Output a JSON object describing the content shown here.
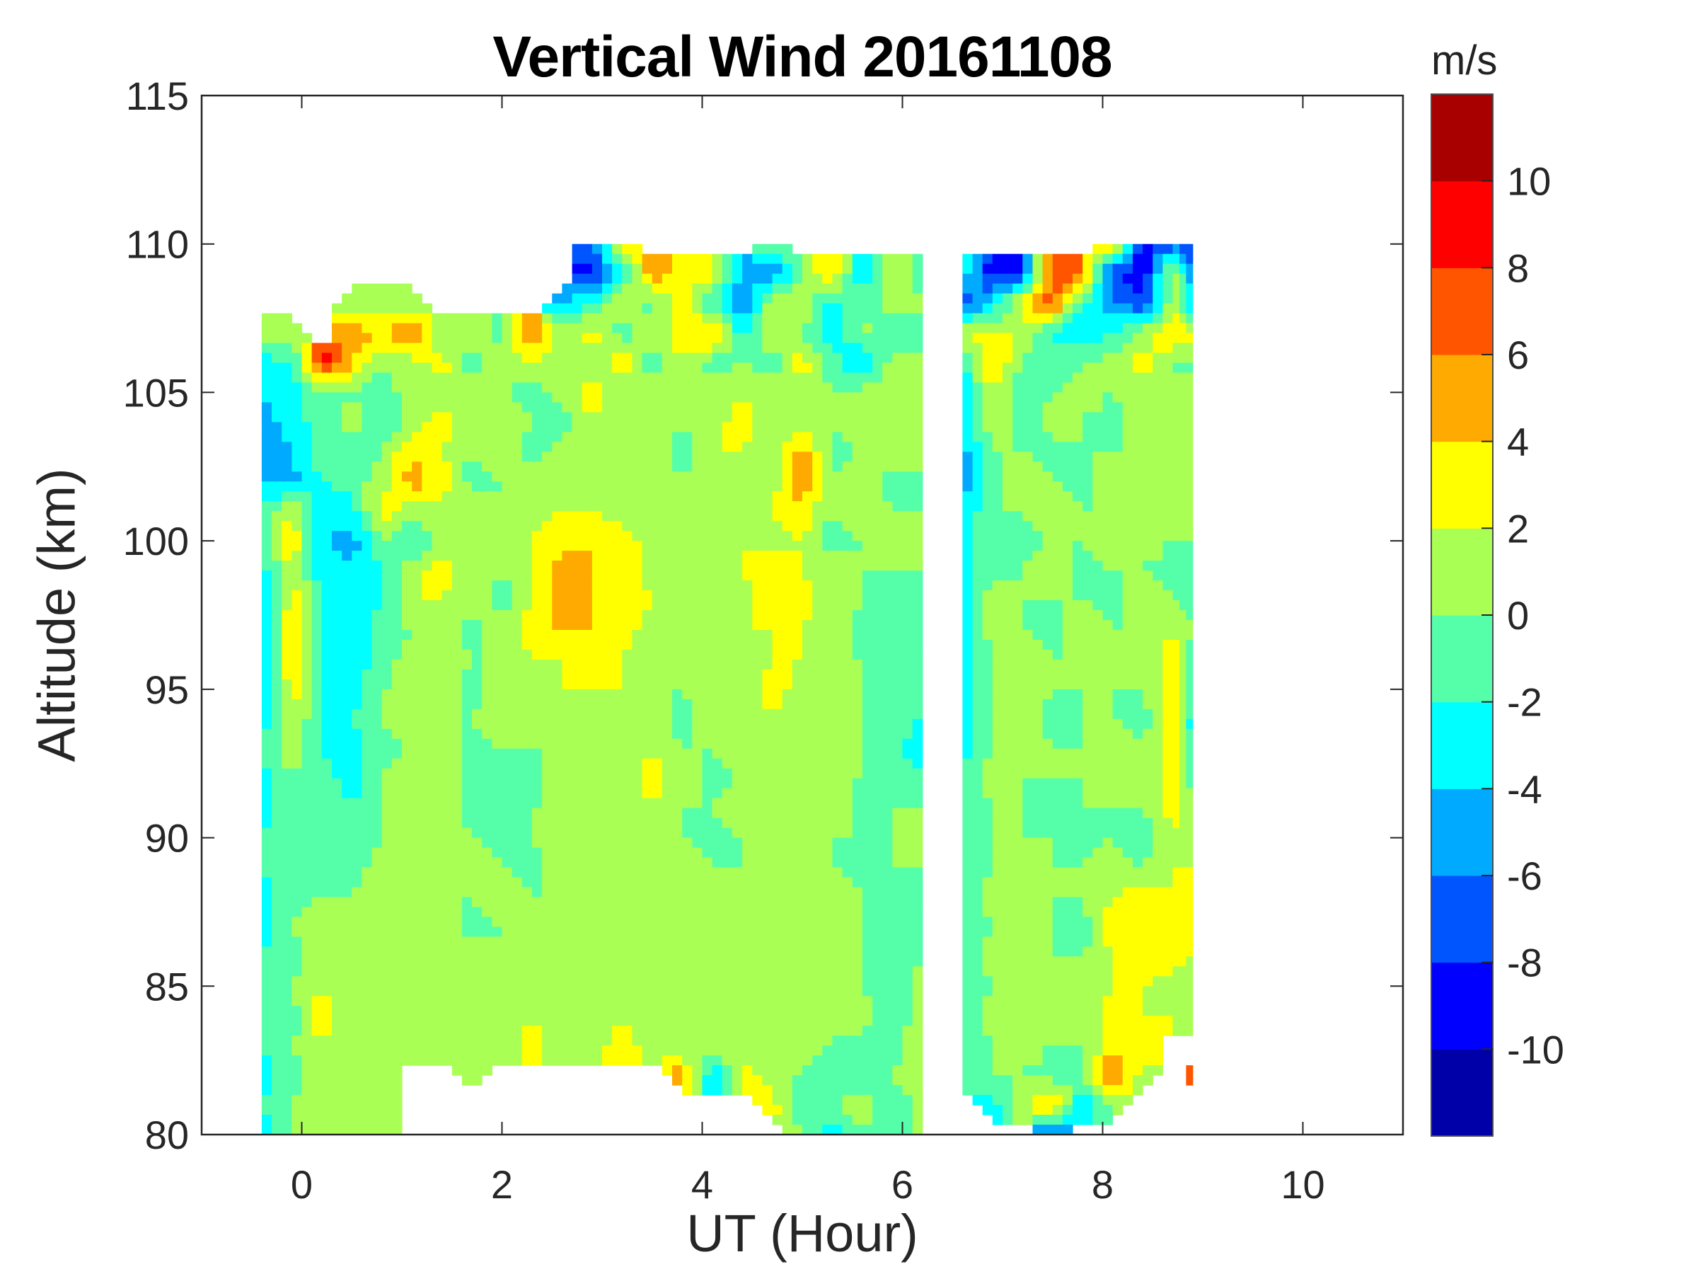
{
  "chart_data": {
    "type": "heatmap",
    "subtype": "filled-contour",
    "title": "Vertical Wind 20161108",
    "xlabel": "UT (Hour)",
    "ylabel": "Altitude (km)",
    "xlim": [
      -1,
      11
    ],
    "ylim": [
      80,
      115
    ],
    "xticks": [
      "0",
      "2",
      "4",
      "6",
      "8",
      "10"
    ],
    "xtick_values": [
      0,
      2,
      4,
      6,
      8,
      10
    ],
    "yticks": [
      "80",
      "85",
      "90",
      "95",
      "100",
      "105",
      "110",
      "115"
    ],
    "ytick_values": [
      80,
      85,
      90,
      95,
      100,
      105,
      110,
      115
    ],
    "grid": false,
    "colorbar": {
      "label": "m/s",
      "location": "right",
      "ticks": [
        "10",
        "8",
        "6",
        "4",
        "2",
        "0",
        "-2",
        "-4",
        "-6",
        "-8",
        "-10"
      ],
      "tick_values": [
        10,
        8,
        6,
        4,
        2,
        0,
        -2,
        -4,
        -6,
        -8,
        -10
      ],
      "range": [
        -12,
        12
      ],
      "levels": [
        -12,
        -10,
        -8,
        -6,
        -4,
        -2,
        0,
        2,
        4,
        6,
        8,
        10,
        12
      ],
      "colors": [
        "#0000a8",
        "#0000ff",
        "#0055ff",
        "#00aaff",
        "#00ffff",
        "#55ffaa",
        "#aaff55",
        "#ffff00",
        "#ffaa00",
        "#ff5500",
        "#ff0000",
        "#a80000"
      ]
    },
    "x_hours": [
      -0.4,
      -0.1,
      0.2,
      0.5,
      0.8,
      1.1,
      1.4,
      1.7,
      2.0,
      2.3,
      2.6,
      2.9,
      3.2,
      3.5,
      3.8,
      4.1,
      4.4,
      4.7,
      5.0,
      5.3,
      5.6,
      5.9,
      6.2,
      6.6,
      6.9,
      7.2,
      7.5,
      7.8,
      8.1,
      8.4,
      8.7,
      8.9
    ],
    "altitudes_km": [
      110,
      109,
      108,
      107,
      106,
      105,
      104,
      103,
      102,
      101,
      100,
      99,
      98,
      97,
      96,
      95,
      94,
      93,
      92,
      91,
      90,
      89,
      88,
      87,
      86,
      85,
      84,
      83,
      82,
      81,
      80
    ],
    "vertical_wind_ms": [
      [
        null,
        null,
        null,
        null,
        null,
        null,
        null,
        null,
        null,
        null,
        null,
        -7,
        3,
        null,
        null,
        null,
        null,
        1,
        null,
        null,
        null,
        null,
        null,
        null,
        null,
        null,
        null,
        null,
        4,
        -9,
        -7,
        -8
      ],
      [
        null,
        null,
        null,
        null,
        null,
        null,
        null,
        null,
        null,
        null,
        null,
        -9,
        -3,
        6,
        2,
        3,
        -5,
        -6,
        0,
        4,
        -4,
        2,
        -1,
        -3,
        -9,
        -8,
        8,
        6,
        -8,
        -10,
        2,
        -6
      ],
      [
        null,
        null,
        null,
        1,
        1,
        1,
        null,
        null,
        null,
        null,
        -5,
        -2,
        2,
        -1,
        4,
        -2,
        -6,
        1,
        2,
        -3,
        -1,
        1,
        0,
        -7,
        -4,
        3,
        7,
        -2,
        -6,
        -8,
        1,
        -4
      ],
      [
        1,
        1,
        null,
        5,
        4,
        7,
        0,
        1,
        -1,
        7,
        1,
        3,
        -1,
        1,
        3,
        5,
        -3,
        2,
        0,
        -4,
        1,
        -2,
        0,
        2,
        3,
        1,
        -2,
        -4,
        -2,
        1,
        5,
        2
      ],
      [
        -3,
        -2,
        9,
        4,
        1,
        1,
        3,
        -1,
        1,
        2,
        1,
        0,
        4,
        -1,
        2,
        -1,
        0,
        -1,
        3,
        -1,
        -5,
        1,
        0,
        -3,
        4,
        0,
        -2,
        0,
        1,
        3,
        -1,
        0
      ],
      [
        -4,
        -3,
        -1,
        0,
        -2,
        2,
        1,
        1,
        0,
        -1,
        1,
        3,
        0,
        1,
        1,
        1,
        2,
        1,
        1,
        0,
        1,
        0,
        0,
        -3,
        2,
        -2,
        0,
        1,
        0,
        1,
        2,
        0
      ],
      [
        -5,
        -3,
        -1,
        1,
        -2,
        1,
        3,
        1,
        2,
        0,
        -1,
        2,
        1,
        2,
        0,
        1,
        3,
        0,
        1,
        0,
        1,
        1,
        0,
        -4,
        1,
        -1,
        1,
        0,
        -1,
        1,
        1,
        0
      ],
      [
        -5,
        -4,
        -1,
        -2,
        0,
        4,
        2,
        0,
        1,
        -1,
        1,
        1,
        2,
        1,
        -1,
        2,
        2,
        1,
        5,
        -1,
        0,
        1,
        0,
        -5,
        0,
        0,
        -1,
        0,
        0,
        0,
        1,
        0
      ],
      [
        -4,
        -5,
        -2,
        -1,
        1,
        5,
        3,
        -1,
        0,
        1,
        2,
        0,
        1,
        1,
        0,
        1,
        1,
        1,
        6,
        0,
        1,
        -1,
        0,
        -5,
        -1,
        1,
        0,
        -1,
        1,
        0,
        0,
        0
      ],
      [
        -2,
        2,
        -3,
        -3,
        3,
        1,
        1,
        2,
        0,
        1,
        2,
        2,
        1,
        0,
        1,
        2,
        1,
        2,
        3,
        0,
        1,
        0,
        0,
        -4,
        0,
        0,
        1,
        0,
        0,
        0,
        1,
        1
      ],
      [
        -1,
        4,
        -4,
        -5,
        0,
        -2,
        1,
        0,
        1,
        2,
        3,
        4,
        3,
        1,
        0,
        1,
        2,
        1,
        2,
        -1,
        0,
        0,
        0,
        -3,
        0,
        -1,
        0,
        0,
        1,
        1,
        0,
        0
      ],
      [
        -3,
        2,
        -3,
        -4,
        -2,
        1,
        3,
        1,
        0,
        2,
        5,
        4,
        3,
        1,
        1,
        0,
        2,
        3,
        2,
        1,
        0,
        0,
        0,
        -3,
        -1,
        0,
        1,
        -1,
        0,
        0,
        -1,
        0
      ],
      [
        -4,
        3,
        -2,
        -3,
        -2,
        2,
        2,
        1,
        -1,
        2,
        6,
        4,
        4,
        2,
        1,
        1,
        1,
        3,
        3,
        1,
        0,
        -1,
        0,
        -3,
        1,
        0,
        0,
        0,
        -1,
        1,
        0,
        -1
      ],
      [
        -5,
        4,
        -2,
        -4,
        -1,
        0,
        2,
        -1,
        1,
        3,
        4,
        4,
        3,
        1,
        0,
        0,
        2,
        2,
        2,
        1,
        -1,
        0,
        0,
        -3,
        1,
        0,
        -1,
        1,
        0,
        0,
        2,
        0
      ],
      [
        -5,
        4,
        -3,
        -4,
        -1,
        1,
        1,
        0,
        0,
        2,
        2,
        3,
        2,
        0,
        0,
        1,
        1,
        2,
        2,
        0,
        0,
        -2,
        0,
        -3,
        0,
        1,
        0,
        0,
        0,
        0,
        3,
        -1
      ],
      [
        -4,
        3,
        -2,
        -3,
        0,
        0,
        1,
        -1,
        1,
        1,
        2,
        2,
        2,
        0,
        0,
        1,
        0,
        3,
        1,
        0,
        0,
        -2,
        0,
        -3,
        0,
        1,
        0,
        0,
        0,
        0,
        3,
        -2
      ],
      [
        -3,
        2,
        -2,
        -2,
        0,
        1,
        0,
        0,
        1,
        0,
        1,
        1,
        0,
        1,
        -1,
        1,
        0,
        2,
        1,
        0,
        0,
        -1,
        -2,
        -3,
        0,
        1,
        -1,
        0,
        0,
        -1,
        3,
        -3
      ],
      [
        -2,
        1,
        -2,
        -3,
        -1,
        0,
        1,
        -1,
        0,
        0,
        0,
        1,
        0,
        2,
        0,
        0,
        1,
        1,
        0,
        1,
        0,
        -1,
        -4,
        -3,
        0,
        1,
        0,
        0,
        1,
        0,
        3,
        -3
      ],
      [
        -3,
        0,
        -1,
        -3,
        0,
        1,
        0,
        0,
        0,
        -1,
        1,
        0,
        1,
        3,
        1,
        -1,
        0,
        1,
        1,
        0,
        0,
        0,
        -2,
        -2,
        1,
        0,
        0,
        0,
        1,
        0,
        4,
        -1
      ],
      [
        -3,
        0,
        -1,
        -2,
        0,
        1,
        1,
        -1,
        0,
        0,
        0,
        1,
        0,
        2,
        0,
        0,
        1,
        0,
        0,
        1,
        -1,
        0,
        0,
        -2,
        0,
        0,
        -1,
        0,
        0,
        0,
        3,
        0
      ],
      [
        -2,
        0,
        -2,
        -1,
        0,
        0,
        1,
        0,
        -1,
        0,
        1,
        0,
        1,
        1,
        0,
        -1,
        0,
        1,
        0,
        0,
        0,
        0,
        0,
        -2,
        0,
        0,
        0,
        -1,
        0,
        -2,
        2,
        1
      ],
      [
        -2,
        0,
        -1,
        -1,
        1,
        0,
        0,
        1,
        0,
        -1,
        1,
        0,
        0,
        1,
        1,
        0,
        0,
        1,
        1,
        0,
        -1,
        0,
        0,
        -2,
        0,
        1,
        0,
        0,
        1,
        0,
        2,
        2
      ],
      [
        -3,
        -1,
        0,
        0,
        1,
        1,
        0,
        0,
        1,
        0,
        0,
        1,
        1,
        0,
        0,
        1,
        0,
        0,
        1,
        1,
        0,
        -1,
        0,
        -1,
        1,
        0,
        0,
        0,
        2,
        3,
        2,
        4
      ],
      [
        -3,
        0,
        1,
        0,
        0,
        1,
        1,
        -1,
        0,
        1,
        0,
        1,
        0,
        1,
        0,
        0,
        1,
        1,
        0,
        0,
        0,
        -2,
        0,
        -2,
        0,
        1,
        0,
        -1,
        3,
        3,
        2,
        3
      ],
      [
        -2,
        -1,
        2,
        0,
        0,
        1,
        0,
        1,
        0,
        0,
        1,
        0,
        2,
        1,
        0,
        1,
        0,
        0,
        1,
        0,
        0,
        -1,
        0,
        -1,
        1,
        0,
        0,
        0,
        2,
        3,
        3,
        2
      ],
      [
        -1,
        0,
        2,
        1,
        0,
        0,
        1,
        0,
        1,
        0,
        1,
        1,
        2,
        1,
        1,
        0,
        1,
        1,
        0,
        1,
        0,
        -1,
        1,
        -1,
        0,
        0,
        1,
        0,
        2,
        2,
        1,
        1
      ],
      [
        -2,
        -1,
        3,
        0,
        1,
        1,
        0,
        0,
        1,
        2,
        0,
        1,
        2,
        0,
        1,
        0,
        0,
        1,
        0,
        0,
        1,
        -2,
        1,
        -1,
        1,
        0,
        0,
        1,
        3,
        2,
        2,
        0
      ],
      [
        -2,
        0,
        2,
        1,
        0,
        1,
        2,
        1,
        0,
        3,
        0,
        1,
        3,
        1,
        0,
        1,
        1,
        0,
        1,
        0,
        -1,
        -1,
        2,
        -1,
        0,
        1,
        0,
        0,
        3,
        3,
        null,
        null
      ],
      [
        -3,
        -1,
        1,
        0,
        0,
        null,
        null,
        1,
        null,
        null,
        null,
        null,
        null,
        null,
        5,
        -4,
        3,
        1,
        0,
        -2,
        -1,
        0,
        2,
        -1,
        0,
        0,
        -1,
        0,
        7,
        1,
        null,
        6
      ],
      [
        -2,
        0,
        1,
        0,
        1,
        null,
        null,
        null,
        null,
        null,
        null,
        null,
        null,
        null,
        null,
        null,
        null,
        3,
        -2,
        0,
        1,
        -2,
        1,
        null,
        -3,
        1,
        5,
        -4,
        0,
        null,
        null,
        null
      ],
      [
        -3,
        0,
        1,
        0,
        1,
        null,
        null,
        null,
        null,
        null,
        null,
        null,
        null,
        null,
        null,
        null,
        null,
        null,
        1,
        -4,
        0,
        -1,
        1,
        null,
        null,
        null,
        -8,
        null,
        null,
        null,
        null,
        null
      ]
    ]
  }
}
